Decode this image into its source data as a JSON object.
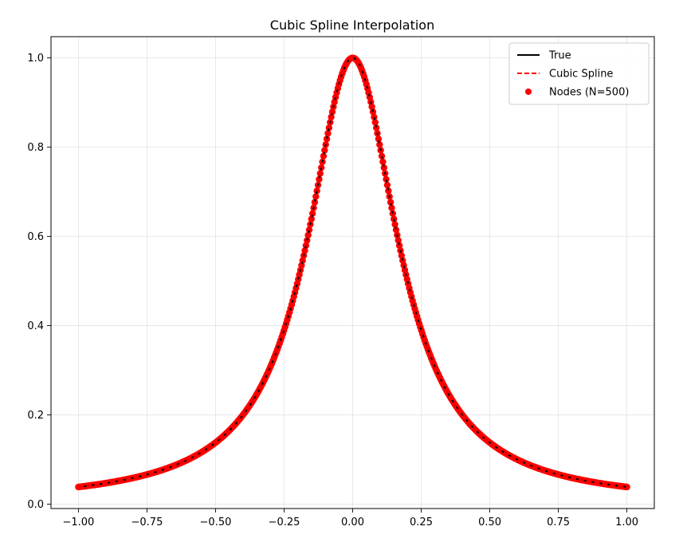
{
  "chart_data": {
    "type": "line",
    "title": "Cubic Spline Interpolation",
    "xlabel": "",
    "ylabel": "",
    "xlim": [
      -1.1,
      1.1
    ],
    "ylim": [
      -0.0098,
      1.0476
    ],
    "x_ticks": [
      -1.0,
      -0.75,
      -0.5,
      -0.25,
      0.0,
      0.25,
      0.5,
      0.75,
      1.0
    ],
    "x_tick_labels": [
      "−1.00",
      "−0.75",
      "−0.50",
      "−0.25",
      "0.00",
      "0.25",
      "0.50",
      "0.75",
      "1.00"
    ],
    "y_ticks": [
      0.0,
      0.2,
      0.4,
      0.6,
      0.8,
      1.0
    ],
    "y_tick_labels": [
      "0.0",
      "0.2",
      "0.4",
      "0.6",
      "0.8",
      "1.0"
    ],
    "grid": true,
    "legend_position": "top-right",
    "function": "1/(1+25x^2)",
    "x_range": [
      -1.0,
      1.0
    ],
    "nodes_count": 500,
    "series": [
      {
        "name": "True",
        "style": "solid",
        "color": "#000000",
        "x": [
          -1.0,
          -0.9,
          -0.8,
          -0.7,
          -0.6,
          -0.5,
          -0.4,
          -0.3,
          -0.2,
          -0.1,
          0.0,
          0.1,
          0.2,
          0.3,
          0.4,
          0.5,
          0.6,
          0.7,
          0.8,
          0.9,
          1.0
        ],
        "y": [
          0.0385,
          0.0471,
          0.0588,
          0.0755,
          0.1,
          0.1379,
          0.2,
          0.3077,
          0.5,
          0.8,
          1.0,
          0.8,
          0.5,
          0.3077,
          0.2,
          0.1379,
          0.1,
          0.0755,
          0.0588,
          0.0471,
          0.0385
        ]
      },
      {
        "name": "Cubic Spline",
        "style": "dashed",
        "color": "#ff0000",
        "x": [
          -1.0,
          -0.9,
          -0.8,
          -0.7,
          -0.6,
          -0.5,
          -0.4,
          -0.3,
          -0.2,
          -0.1,
          0.0,
          0.1,
          0.2,
          0.3,
          0.4,
          0.5,
          0.6,
          0.7,
          0.8,
          0.9,
          1.0
        ],
        "y": [
          0.0385,
          0.0471,
          0.0588,
          0.0755,
          0.1,
          0.1379,
          0.2,
          0.3077,
          0.5,
          0.8,
          1.0,
          0.8,
          0.5,
          0.3077,
          0.2,
          0.1379,
          0.1,
          0.0755,
          0.0588,
          0.0471,
          0.0385
        ]
      },
      {
        "name": "Nodes (N=500)",
        "style": "markers",
        "color": "#ff0000",
        "x": [
          -1.0,
          -0.9,
          -0.8,
          -0.7,
          -0.6,
          -0.5,
          -0.4,
          -0.3,
          -0.2,
          -0.1,
          0.0,
          0.1,
          0.2,
          0.3,
          0.4,
          0.5,
          0.6,
          0.7,
          0.8,
          0.9,
          1.0
        ],
        "y": [
          0.0385,
          0.0471,
          0.0588,
          0.0755,
          0.1,
          0.1379,
          0.2,
          0.3077,
          0.5,
          0.8,
          1.0,
          0.8,
          0.5,
          0.3077,
          0.2,
          0.1379,
          0.1,
          0.0755,
          0.0588,
          0.0471,
          0.0385
        ]
      }
    ]
  }
}
